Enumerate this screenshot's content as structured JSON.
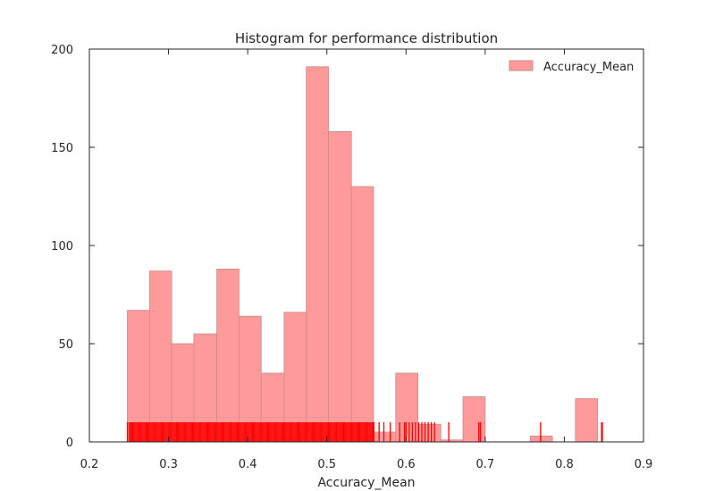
{
  "chart_data": {
    "type": "bar",
    "title": "Histogram for performance distribution",
    "xlabel": "Accuracy_Mean",
    "ylabel": "",
    "xlim": [
      0.2,
      0.9
    ],
    "ylim": [
      0,
      200
    ],
    "x_ticks": [
      "0.2",
      "0.3",
      "0.4",
      "0.5",
      "0.6",
      "0.7",
      "0.8",
      "0.9"
    ],
    "y_ticks": [
      "0",
      "50",
      "100",
      "150",
      "200"
    ],
    "grid": false,
    "legend": {
      "placement": "top-right",
      "entries": [
        "Accuracy_Mean"
      ]
    },
    "bar_color": "#ff9a9a",
    "bar_edge_color": "#c98a8a",
    "rug_color": "#ff0000",
    "series": [
      {
        "name": "Accuracy_Mean",
        "bins": [
          {
            "x0": 0.248,
            "x1": 0.276,
            "value": 67
          },
          {
            "x0": 0.276,
            "x1": 0.304,
            "value": 87
          },
          {
            "x0": 0.304,
            "x1": 0.332,
            "value": 50
          },
          {
            "x0": 0.332,
            "x1": 0.361,
            "value": 55
          },
          {
            "x0": 0.361,
            "x1": 0.389,
            "value": 88
          },
          {
            "x0": 0.389,
            "x1": 0.417,
            "value": 64
          },
          {
            "x0": 0.417,
            "x1": 0.446,
            "value": 35
          },
          {
            "x0": 0.446,
            "x1": 0.474,
            "value": 66
          },
          {
            "x0": 0.474,
            "x1": 0.502,
            "value": 191
          },
          {
            "x0": 0.502,
            "x1": 0.531,
            "value": 158
          },
          {
            "x0": 0.531,
            "x1": 0.559,
            "value": 130
          },
          {
            "x0": 0.559,
            "x1": 0.587,
            "value": 5
          },
          {
            "x0": 0.587,
            "x1": 0.615,
            "value": 35
          },
          {
            "x0": 0.615,
            "x1": 0.644,
            "value": 9
          },
          {
            "x0": 0.644,
            "x1": 0.672,
            "value": 1
          },
          {
            "x0": 0.672,
            "x1": 0.7,
            "value": 23
          },
          {
            "x0": 0.7,
            "x1": 0.729,
            "value": 0
          },
          {
            "x0": 0.729,
            "x1": 0.757,
            "value": 0
          },
          {
            "x0": 0.757,
            "x1": 0.785,
            "value": 3
          },
          {
            "x0": 0.785,
            "x1": 0.814,
            "value": 0
          },
          {
            "x0": 0.814,
            "x1": 0.842,
            "value": 22
          }
        ],
        "rug": {
          "dense_ranges": [
            [
              0.25,
              0.56
            ]
          ],
          "points": [
            0.248,
            0.566,
            0.572,
            0.58,
            0.592,
            0.598,
            0.6,
            0.604,
            0.608,
            0.612,
            0.616,
            0.62,
            0.624,
            0.628,
            0.632,
            0.636,
            0.654,
            0.692,
            0.694,
            0.77,
            0.847,
            0.848
          ],
          "height": 10
        }
      }
    ]
  }
}
